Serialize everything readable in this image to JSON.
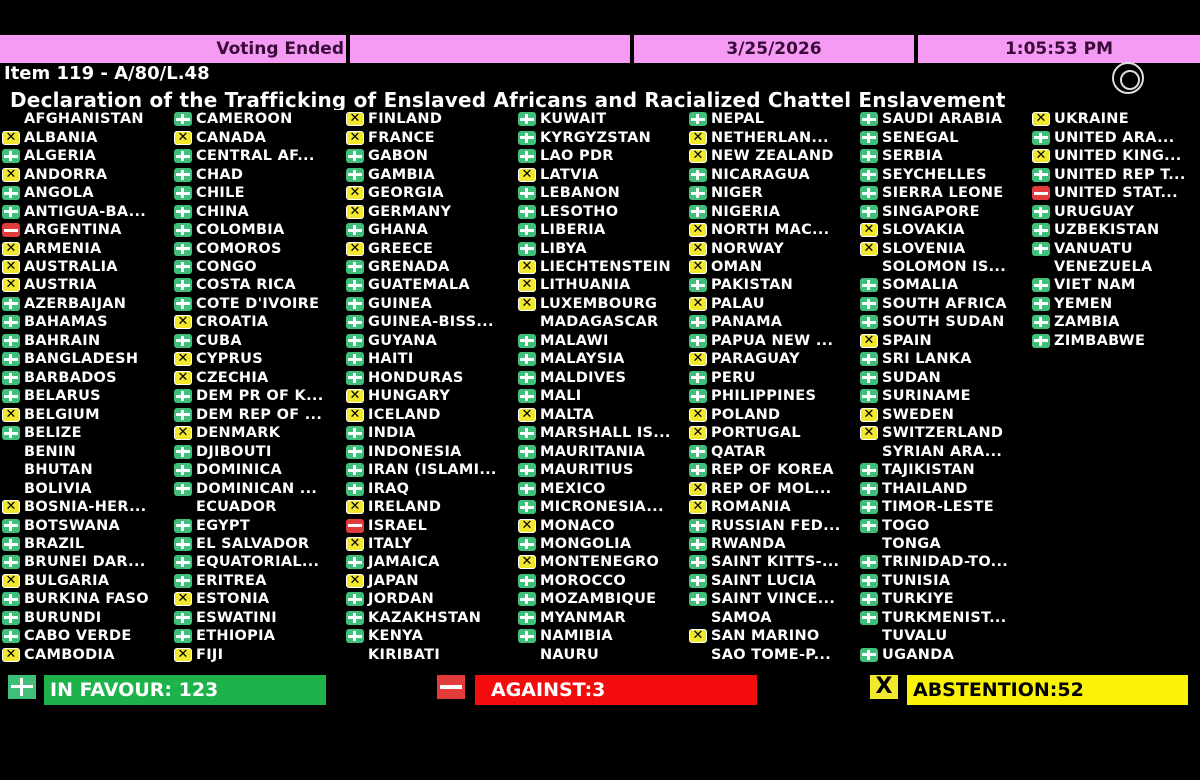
{
  "header": {
    "status": "Voting Ended",
    "blank": "",
    "date": "3/25/2026",
    "time": "1:05:53 PM"
  },
  "item": "Item 119 - A/80/L.48",
  "title": "Declaration of the Trafficking of Enslaved Africans and Racialized Chattel Enslavement",
  "vote_colors": {
    "Y": "#3fbf7a",
    "N": "#e23b3b",
    "A": "#f2e830"
  },
  "vote_icons": {
    "Y": "plus-icon",
    "N": "minus-icon",
    "A": "x-icon"
  },
  "columns": [
    [
      [
        "AFGHANISTAN",
        ""
      ],
      [
        "ALBANIA",
        "A"
      ],
      [
        "ALGERIA",
        "Y"
      ],
      [
        "ANDORRA",
        "A"
      ],
      [
        "ANGOLA",
        "Y"
      ],
      [
        "ANTIGUA-BA...",
        "Y"
      ],
      [
        "ARGENTINA",
        "N"
      ],
      [
        "ARMENIA",
        "A"
      ],
      [
        "AUSTRALIA",
        "A"
      ],
      [
        "AUSTRIA",
        "A"
      ],
      [
        "AZERBAIJAN",
        "Y"
      ],
      [
        "BAHAMAS",
        "Y"
      ],
      [
        "BAHRAIN",
        "Y"
      ],
      [
        "BANGLADESH",
        "Y"
      ],
      [
        "BARBADOS",
        "Y"
      ],
      [
        "BELARUS",
        "Y"
      ],
      [
        "BELGIUM",
        "A"
      ],
      [
        "BELIZE",
        "Y"
      ],
      [
        "BENIN",
        ""
      ],
      [
        "BHUTAN",
        ""
      ],
      [
        "BOLIVIA",
        ""
      ],
      [
        "BOSNIA-HER...",
        "A"
      ],
      [
        "BOTSWANA",
        "Y"
      ],
      [
        "BRAZIL",
        "Y"
      ],
      [
        "BRUNEI DAR...",
        "Y"
      ],
      [
        "BULGARIA",
        "A"
      ],
      [
        "BURKINA FASO",
        "Y"
      ],
      [
        "BURUNDI",
        "Y"
      ],
      [
        "CABO VERDE",
        "Y"
      ],
      [
        "CAMBODIA",
        "A"
      ]
    ],
    [
      [
        "CAMEROON",
        "Y"
      ],
      [
        "CANADA",
        "A"
      ],
      [
        "CENTRAL AF...",
        "Y"
      ],
      [
        "CHAD",
        "Y"
      ],
      [
        "CHILE",
        "Y"
      ],
      [
        "CHINA",
        "Y"
      ],
      [
        "COLOMBIA",
        "Y"
      ],
      [
        "COMOROS",
        "Y"
      ],
      [
        "CONGO",
        "Y"
      ],
      [
        "COSTA RICA",
        "Y"
      ],
      [
        "COTE D'IVOIRE",
        "Y"
      ],
      [
        "CROATIA",
        "A"
      ],
      [
        "CUBA",
        "Y"
      ],
      [
        "CYPRUS",
        "A"
      ],
      [
        "CZECHIA",
        "A"
      ],
      [
        "DEM PR OF K...",
        "Y"
      ],
      [
        "DEM REP OF ...",
        "Y"
      ],
      [
        "DENMARK",
        "A"
      ],
      [
        "DJIBOUTI",
        "Y"
      ],
      [
        "DOMINICA",
        "Y"
      ],
      [
        "DOMINICAN ...",
        "Y"
      ],
      [
        "ECUADOR",
        ""
      ],
      [
        "EGYPT",
        "Y"
      ],
      [
        "EL SALVADOR",
        "Y"
      ],
      [
        "EQUATORIAL...",
        "Y"
      ],
      [
        "ERITREA",
        "Y"
      ],
      [
        "ESTONIA",
        "A"
      ],
      [
        "ESWATINI",
        "Y"
      ],
      [
        "ETHIOPIA",
        "Y"
      ],
      [
        "FIJI",
        "A"
      ]
    ],
    [
      [
        "FINLAND",
        "A"
      ],
      [
        "FRANCE",
        "A"
      ],
      [
        "GABON",
        "Y"
      ],
      [
        "GAMBIA",
        "Y"
      ],
      [
        "GEORGIA",
        "A"
      ],
      [
        "GERMANY",
        "A"
      ],
      [
        "GHANA",
        "Y"
      ],
      [
        "GREECE",
        "A"
      ],
      [
        "GRENADA",
        "Y"
      ],
      [
        "GUATEMALA",
        "Y"
      ],
      [
        "GUINEA",
        "Y"
      ],
      [
        "GUINEA-BISS...",
        "Y"
      ],
      [
        "GUYANA",
        "Y"
      ],
      [
        "HAITI",
        "Y"
      ],
      [
        "HONDURAS",
        "Y"
      ],
      [
        "HUNGARY",
        "A"
      ],
      [
        "ICELAND",
        "A"
      ],
      [
        "INDIA",
        "Y"
      ],
      [
        "INDONESIA",
        "Y"
      ],
      [
        "IRAN (ISLAMI...",
        "Y"
      ],
      [
        "IRAQ",
        "Y"
      ],
      [
        "IRELAND",
        "A"
      ],
      [
        "ISRAEL",
        "N"
      ],
      [
        "ITALY",
        "A"
      ],
      [
        "JAMAICA",
        "Y"
      ],
      [
        "JAPAN",
        "A"
      ],
      [
        "JORDAN",
        "Y"
      ],
      [
        "KAZAKHSTAN",
        "Y"
      ],
      [
        "KENYA",
        "Y"
      ],
      [
        "KIRIBATI",
        ""
      ]
    ],
    [
      [
        "KUWAIT",
        "Y"
      ],
      [
        "KYRGYZSTAN",
        "Y"
      ],
      [
        "LAO PDR",
        "Y"
      ],
      [
        "LATVIA",
        "A"
      ],
      [
        "LEBANON",
        "Y"
      ],
      [
        "LESOTHO",
        "Y"
      ],
      [
        "LIBERIA",
        "Y"
      ],
      [
        "LIBYA",
        "Y"
      ],
      [
        "LIECHTENSTEIN",
        "A"
      ],
      [
        "LITHUANIA",
        "A"
      ],
      [
        "LUXEMBOURG",
        "A"
      ],
      [
        "MADAGASCAR",
        ""
      ],
      [
        "MALAWI",
        "Y"
      ],
      [
        "MALAYSIA",
        "Y"
      ],
      [
        "MALDIVES",
        "Y"
      ],
      [
        "MALI",
        "Y"
      ],
      [
        "MALTA",
        "A"
      ],
      [
        "MARSHALL IS...",
        "Y"
      ],
      [
        "MAURITANIA",
        "Y"
      ],
      [
        "MAURITIUS",
        "Y"
      ],
      [
        "MEXICO",
        "Y"
      ],
      [
        "MICRONESIA...",
        "Y"
      ],
      [
        "MONACO",
        "A"
      ],
      [
        "MONGOLIA",
        "Y"
      ],
      [
        "MONTENEGRO",
        "A"
      ],
      [
        "MOROCCO",
        "Y"
      ],
      [
        "MOZAMBIQUE",
        "Y"
      ],
      [
        "MYANMAR",
        "Y"
      ],
      [
        "NAMIBIA",
        "Y"
      ],
      [
        "NAURU",
        ""
      ]
    ],
    [
      [
        "NEPAL",
        "Y"
      ],
      [
        "NETHERLAN...",
        "A"
      ],
      [
        "NEW ZEALAND",
        "A"
      ],
      [
        "NICARAGUA",
        "Y"
      ],
      [
        "NIGER",
        "Y"
      ],
      [
        "NIGERIA",
        "Y"
      ],
      [
        "NORTH MAC...",
        "A"
      ],
      [
        "NORWAY",
        "A"
      ],
      [
        "OMAN",
        "A"
      ],
      [
        "PAKISTAN",
        "Y"
      ],
      [
        "PALAU",
        "A"
      ],
      [
        "PANAMA",
        "Y"
      ],
      [
        "PAPUA NEW ...",
        "Y"
      ],
      [
        "PARAGUAY",
        "A"
      ],
      [
        "PERU",
        "Y"
      ],
      [
        "PHILIPPINES",
        "Y"
      ],
      [
        "POLAND",
        "A"
      ],
      [
        "PORTUGAL",
        "A"
      ],
      [
        "QATAR",
        "Y"
      ],
      [
        "REP OF KOREA",
        "Y"
      ],
      [
        "REP OF MOL...",
        "A"
      ],
      [
        "ROMANIA",
        "A"
      ],
      [
        "RUSSIAN FED...",
        "Y"
      ],
      [
        "RWANDA",
        "Y"
      ],
      [
        "SAINT KITTS-...",
        "Y"
      ],
      [
        "SAINT LUCIA",
        "Y"
      ],
      [
        "SAINT VINCE...",
        "Y"
      ],
      [
        "SAMOA",
        ""
      ],
      [
        "SAN MARINO",
        "A"
      ],
      [
        "SAO TOME-P...",
        ""
      ]
    ],
    [
      [
        "SAUDI ARABIA",
        "Y"
      ],
      [
        "SENEGAL",
        "Y"
      ],
      [
        "SERBIA",
        "Y"
      ],
      [
        "SEYCHELLES",
        "Y"
      ],
      [
        "SIERRA LEONE",
        "Y"
      ],
      [
        "SINGAPORE",
        "Y"
      ],
      [
        "SLOVAKIA",
        "A"
      ],
      [
        "SLOVENIA",
        "A"
      ],
      [
        "SOLOMON IS...",
        ""
      ],
      [
        "SOMALIA",
        "Y"
      ],
      [
        "SOUTH AFRICA",
        "Y"
      ],
      [
        "SOUTH SUDAN",
        "Y"
      ],
      [
        "SPAIN",
        "A"
      ],
      [
        "SRI LANKA",
        "Y"
      ],
      [
        "SUDAN",
        "Y"
      ],
      [
        "SURINAME",
        "Y"
      ],
      [
        "SWEDEN",
        "A"
      ],
      [
        "SWITZERLAND",
        "A"
      ],
      [
        "SYRIAN ARA...",
        ""
      ],
      [
        "TAJIKISTAN",
        "Y"
      ],
      [
        "THAILAND",
        "Y"
      ],
      [
        "TIMOR-LESTE",
        "Y"
      ],
      [
        "TOGO",
        "Y"
      ],
      [
        "TONGA",
        ""
      ],
      [
        "TRINIDAD-TO...",
        "Y"
      ],
      [
        "TUNISIA",
        "Y"
      ],
      [
        "TURKIYE",
        "Y"
      ],
      [
        "TURKMENIST...",
        "Y"
      ],
      [
        "TUVALU",
        ""
      ],
      [
        "UGANDA",
        "Y"
      ]
    ],
    [
      [
        "UKRAINE",
        "A"
      ],
      [
        "UNITED ARA...",
        "Y"
      ],
      [
        "UNITED KING...",
        "A"
      ],
      [
        "UNITED REP T...",
        "Y"
      ],
      [
        "UNITED STAT...",
        "N"
      ],
      [
        "URUGUAY",
        "Y"
      ],
      [
        "UZBEKISTAN",
        "Y"
      ],
      [
        "VANUATU",
        "Y"
      ],
      [
        "VENEZUELA",
        ""
      ],
      [
        "VIET NAM",
        "Y"
      ],
      [
        "YEMEN",
        "Y"
      ],
      [
        "ZAMBIA",
        "Y"
      ],
      [
        "ZIMBABWE",
        "Y"
      ]
    ]
  ],
  "totals": {
    "favour": "IN FAVOUR: 123",
    "against": "AGAINST:3",
    "abstention": "ABSTENTION:52",
    "abstention_icon": "X"
  }
}
